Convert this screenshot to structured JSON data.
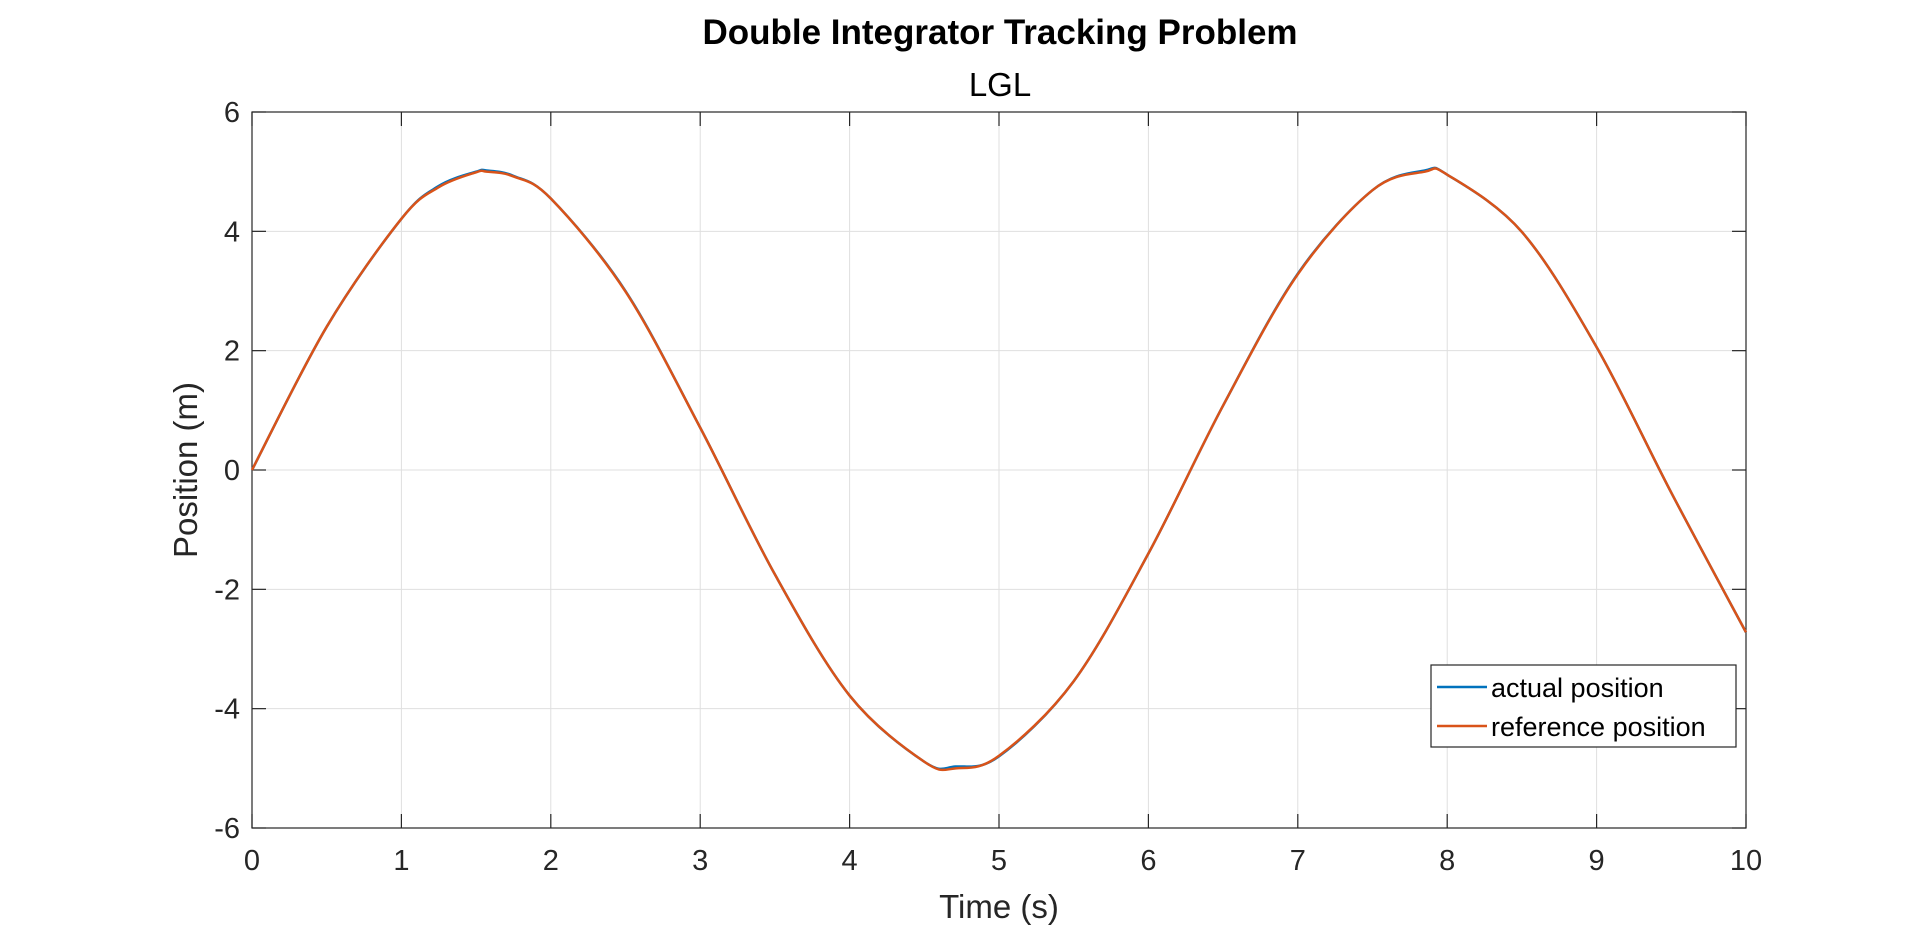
{
  "chart_data": {
    "type": "line",
    "title": "Double Integrator Tracking Problem",
    "subtitle": "LGL",
    "xlabel": "Time (s)",
    "ylabel": "Position (m)",
    "xlim": [
      0,
      10
    ],
    "ylim": [
      -6,
      6
    ],
    "xticks": [
      0,
      1,
      2,
      3,
      4,
      5,
      6,
      7,
      8,
      9,
      10
    ],
    "xtick_labels": [
      "0",
      "1",
      "2",
      "3",
      "4",
      "5",
      "6",
      "7",
      "8",
      "9",
      "10"
    ],
    "yticks": [
      6,
      4,
      2,
      0,
      -2,
      -4,
      -6
    ],
    "ytick_labels": [
      "6",
      "4",
      "2",
      "0",
      "-2",
      "-4",
      "-6"
    ],
    "grid": true,
    "legend_position": "bottom-right",
    "x": [
      0,
      0.5,
      1,
      1.25,
      1.5,
      1.57,
      1.75,
      2,
      2.5,
      3,
      3.5,
      4,
      4.5,
      4.71,
      5,
      5.5,
      6,
      6.5,
      7,
      7.5,
      7.85,
      8,
      8.5,
      9,
      9.5,
      10
    ],
    "series": [
      {
        "name": "actual position",
        "color": "#0072bd",
        "values": [
          0,
          2.4,
          4.21,
          4.76,
          5.0,
          5.02,
          4.93,
          4.55,
          3.0,
          0.71,
          -1.75,
          -3.78,
          -4.89,
          -4.97,
          -4.8,
          -3.54,
          -1.4,
          1.08,
          3.29,
          4.69,
          5.02,
          4.95,
          3.99,
          2.06,
          -0.38,
          -2.72
        ]
      },
      {
        "name": "reference position",
        "color": "#d95319",
        "values": [
          0,
          2.4,
          4.21,
          4.74,
          4.99,
          5.0,
          4.92,
          4.55,
          2.99,
          0.71,
          -1.75,
          -3.78,
          -4.89,
          -5.0,
          -4.79,
          -3.54,
          -1.4,
          1.08,
          3.28,
          4.69,
          5.0,
          4.95,
          3.99,
          2.06,
          -0.38,
          -2.72
        ]
      }
    ]
  }
}
